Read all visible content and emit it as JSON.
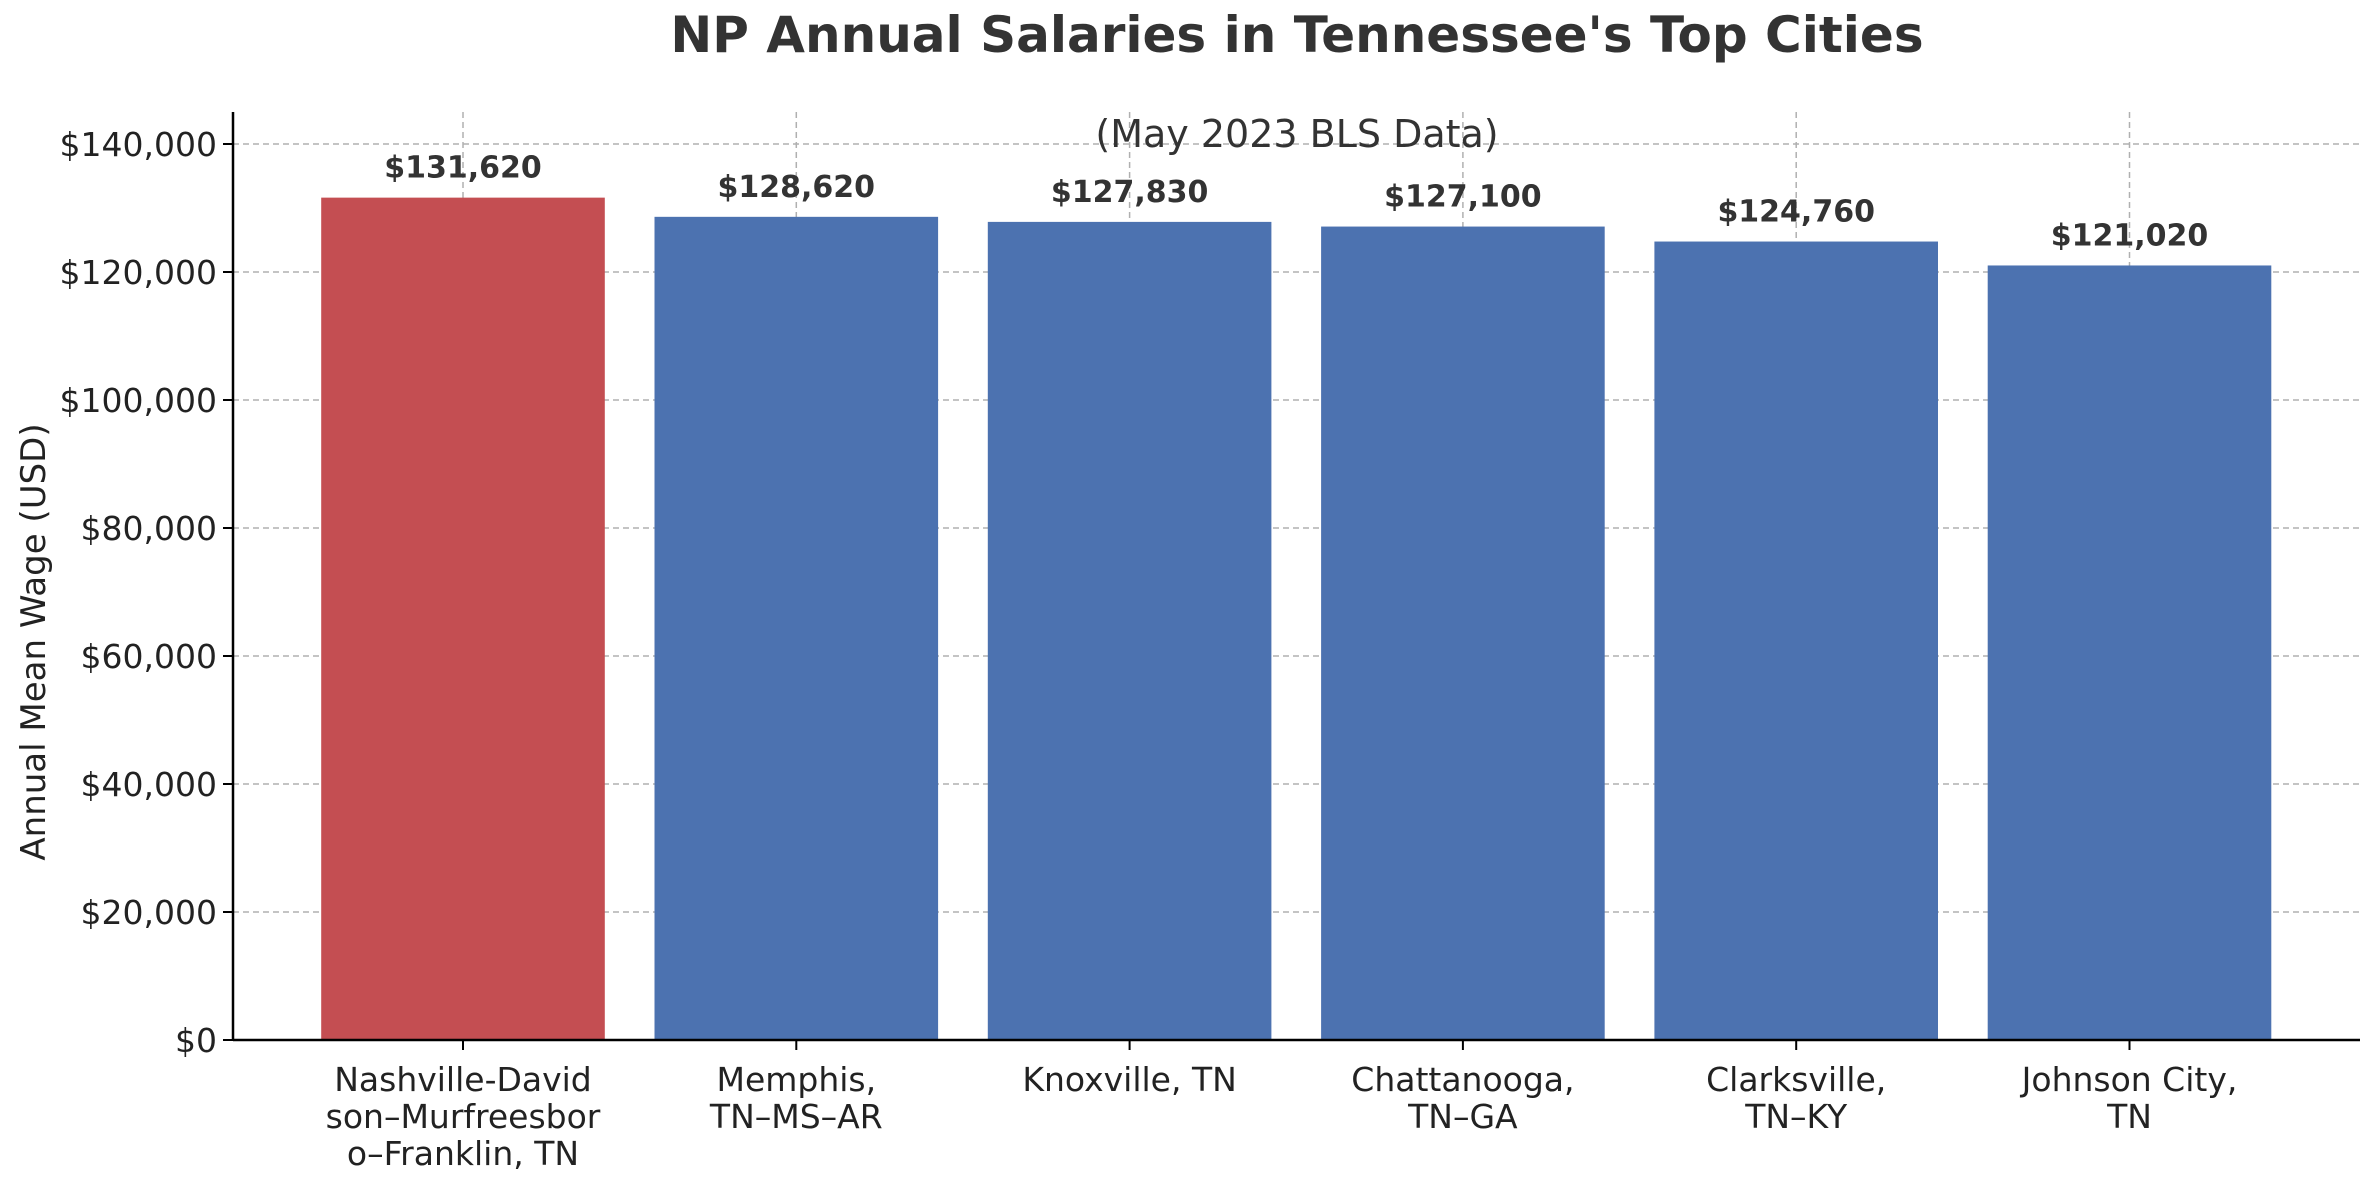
{
  "chart_data": {
    "type": "bar",
    "title": "NP Annual Salaries in Tennessee's Top Cities",
    "subtitle": "(May 2023 BLS Data)",
    "xlabel": "",
    "ylabel": "Annual Mean Wage (USD)",
    "categories": [
      [
        "Nashville-David",
        "son–Murfreesbor",
        "o–Franklin, TN"
      ],
      [
        "Memphis,",
        "TN–MS–AR"
      ],
      [
        "Knoxville, TN"
      ],
      [
        "Chattanooga,",
        "TN–GA"
      ],
      [
        "Clarksville,",
        "TN–KY"
      ],
      [
        "Johnson City,",
        "TN"
      ]
    ],
    "values": [
      131620,
      128620,
      127830,
      127100,
      124760,
      121020
    ],
    "value_labels": [
      "$131,620",
      "$128,620",
      "$127,830",
      "$127,100",
      "$124,760",
      "$121,020"
    ],
    "bar_colors": [
      "#c44e52",
      "#4c72b0",
      "#4c72b0",
      "#4c72b0",
      "#4c72b0",
      "#4c72b0"
    ],
    "ylim": [
      0,
      145000
    ],
    "yticks": [
      0,
      20000,
      40000,
      60000,
      80000,
      100000,
      120000,
      140000
    ],
    "ytick_labels": [
      "$0",
      "$20,000",
      "$40,000",
      "$60,000",
      "$80,000",
      "$100,000",
      "$120,000",
      "$140,000"
    ],
    "grid": true,
    "grid_style": "dashed",
    "colors": {
      "highlight": "#c44e52",
      "default_bar": "#4c72b0",
      "text": "#333333",
      "grid": "#b0b0b0",
      "axis": "#000000"
    }
  }
}
